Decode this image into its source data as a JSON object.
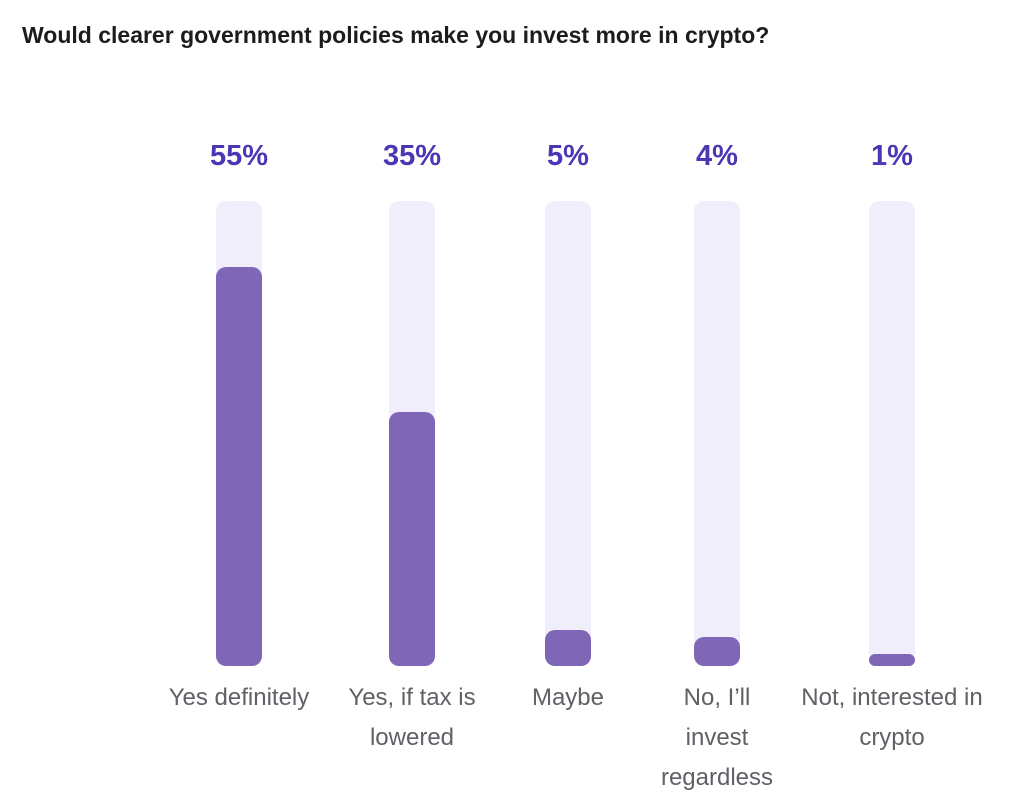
{
  "chart_data": {
    "type": "bar",
    "title": "Would clearer government policies make you invest more in crypto?",
    "categories": [
      "Yes definitely",
      "Yes, if tax is lowered",
      "Maybe",
      "No, I’ll invest regardless",
      "Not, interested in crypto"
    ],
    "values": [
      55,
      35,
      5,
      4,
      1
    ],
    "value_labels": [
      "55%",
      "35%",
      "5%",
      "4%",
      "1%"
    ],
    "color": "#7f66b6"
  }
}
